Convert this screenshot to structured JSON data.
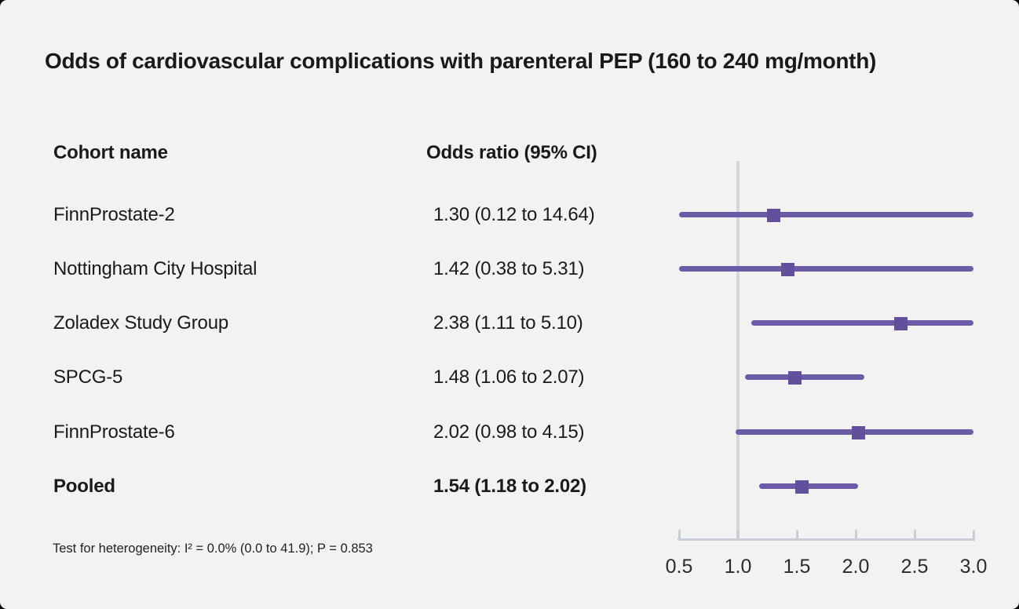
{
  "title": "Odds of cardiovascular complications with parenteral PEP (160 to 240 mg/month)",
  "columns": {
    "cohort": "Cohort name",
    "odds": "Odds ratio (95% CI)"
  },
  "footnote": "Test for heterogeneity: I² = 0.0% (0.0 to 41.9); P = 0.853",
  "colors": {
    "background": "#f2f2f2",
    "text": "#1a1a1a",
    "ci_line": "#6c5ca8",
    "marker": "#62509c",
    "axis": "#c9cdd6",
    "refline": "#d2d7e0"
  },
  "chart_data": {
    "type": "forest",
    "marker_shape": "square",
    "studies": [
      {
        "name": "FinnProstate-2",
        "label": "1.30 (0.12 to 14.64)",
        "or": 1.3,
        "ci_low": 0.12,
        "ci_high": 14.64,
        "pooled": false
      },
      {
        "name": "Nottingham City Hospital",
        "label": "1.42 (0.38 to 5.31)",
        "or": 1.42,
        "ci_low": 0.38,
        "ci_high": 5.31,
        "pooled": false
      },
      {
        "name": "Zoladex Study Group",
        "label": "2.38 (1.11 to 5.10)",
        "or": 2.38,
        "ci_low": 1.11,
        "ci_high": 5.1,
        "pooled": false
      },
      {
        "name": "SPCG-5",
        "label": "1.48 (1.06 to 2.07)",
        "or": 1.48,
        "ci_low": 1.06,
        "ci_high": 2.07,
        "pooled": false
      },
      {
        "name": "FinnProstate-6",
        "label": "2.02 (0.98 to 4.15)",
        "or": 2.02,
        "ci_low": 0.98,
        "ci_high": 4.15,
        "pooled": false
      },
      {
        "name": "Pooled",
        "label": "1.54 (1.18 to 2.02)",
        "or": 1.54,
        "ci_low": 1.18,
        "ci_high": 2.02,
        "pooled": true
      }
    ],
    "xaxis": {
      "min": 0.5,
      "max": 3.0,
      "tick_values": [
        0.5,
        1.0,
        1.5,
        2.0,
        2.5,
        3.0
      ],
      "tick_labels": [
        "0.5",
        "1.0",
        "1.5",
        "2.0",
        "2.5",
        "3.0"
      ],
      "reference_line": 1.0,
      "grid": false
    }
  }
}
